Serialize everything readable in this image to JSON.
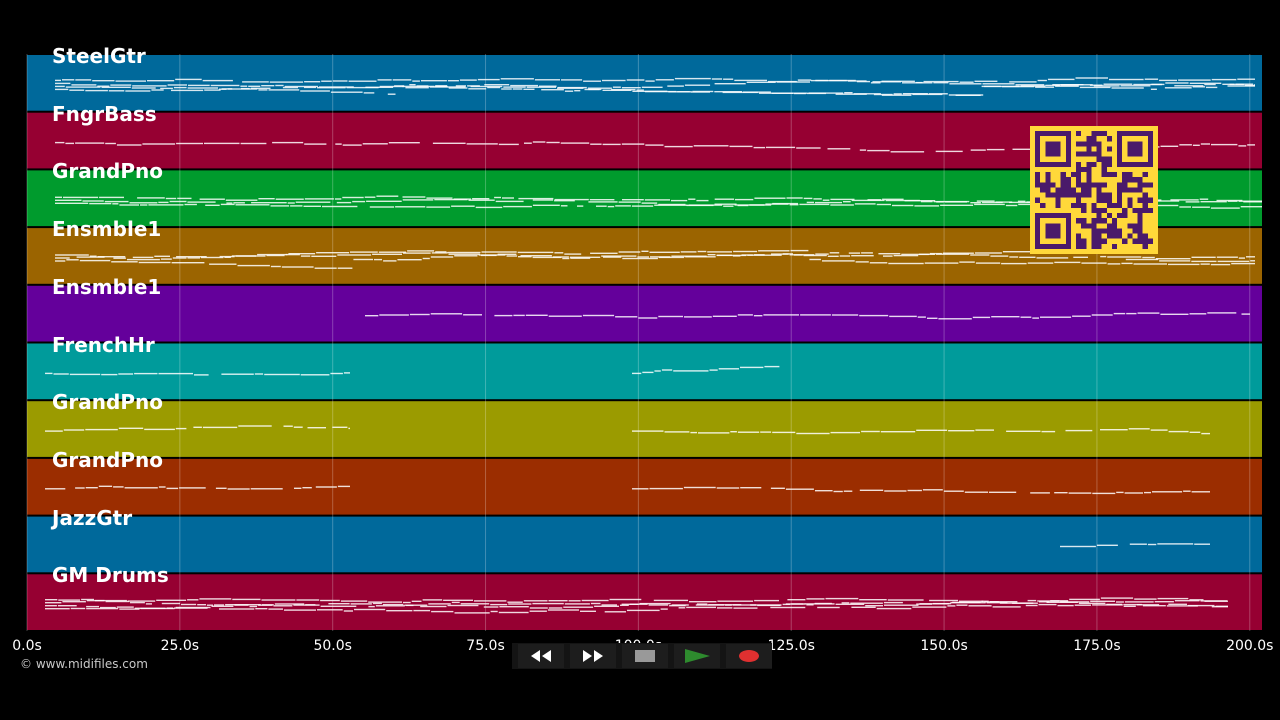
{
  "tracks": [
    {
      "name": "SteelGtr",
      "color": "#00699b"
    },
    {
      "name": "FngrBass",
      "color": "#960032"
    },
    {
      "name": "GrandPno",
      "color": "#009b2d"
    },
    {
      "name": "Ensmble1",
      "color": "#9b6400"
    },
    {
      "name": "Ensmble1",
      "color": "#64009b"
    },
    {
      "name": "FrenchHr",
      "color": "#009b9b"
    },
    {
      "name": "GrandPno",
      "color": "#9b9b00"
    },
    {
      "name": "GrandPno",
      "color": "#9b2d00"
    },
    {
      "name": "JazzGtr",
      "color": "#00699b"
    },
    {
      "name": "GM Drums",
      "color": "#960032"
    }
  ],
  "time_axis": {
    "ticks": [
      "0.0s",
      "25.0s",
      "50.0s",
      "75.0s",
      "100.0s",
      "125.0s",
      "150.0s",
      "175.0s",
      "200.0s"
    ]
  },
  "copyright": "© www.midifiles.com",
  "transport": {
    "rewind": "rewind-icon",
    "fast_forward": "fast-forward-icon",
    "stop": "stop-icon",
    "play": "play-icon",
    "record": "record-icon",
    "play_color": "#2e8b2e",
    "record_color": "#e03030"
  },
  "qr": {
    "color_bg": "#ffd83a",
    "color_fg": "#4a1a6a"
  }
}
